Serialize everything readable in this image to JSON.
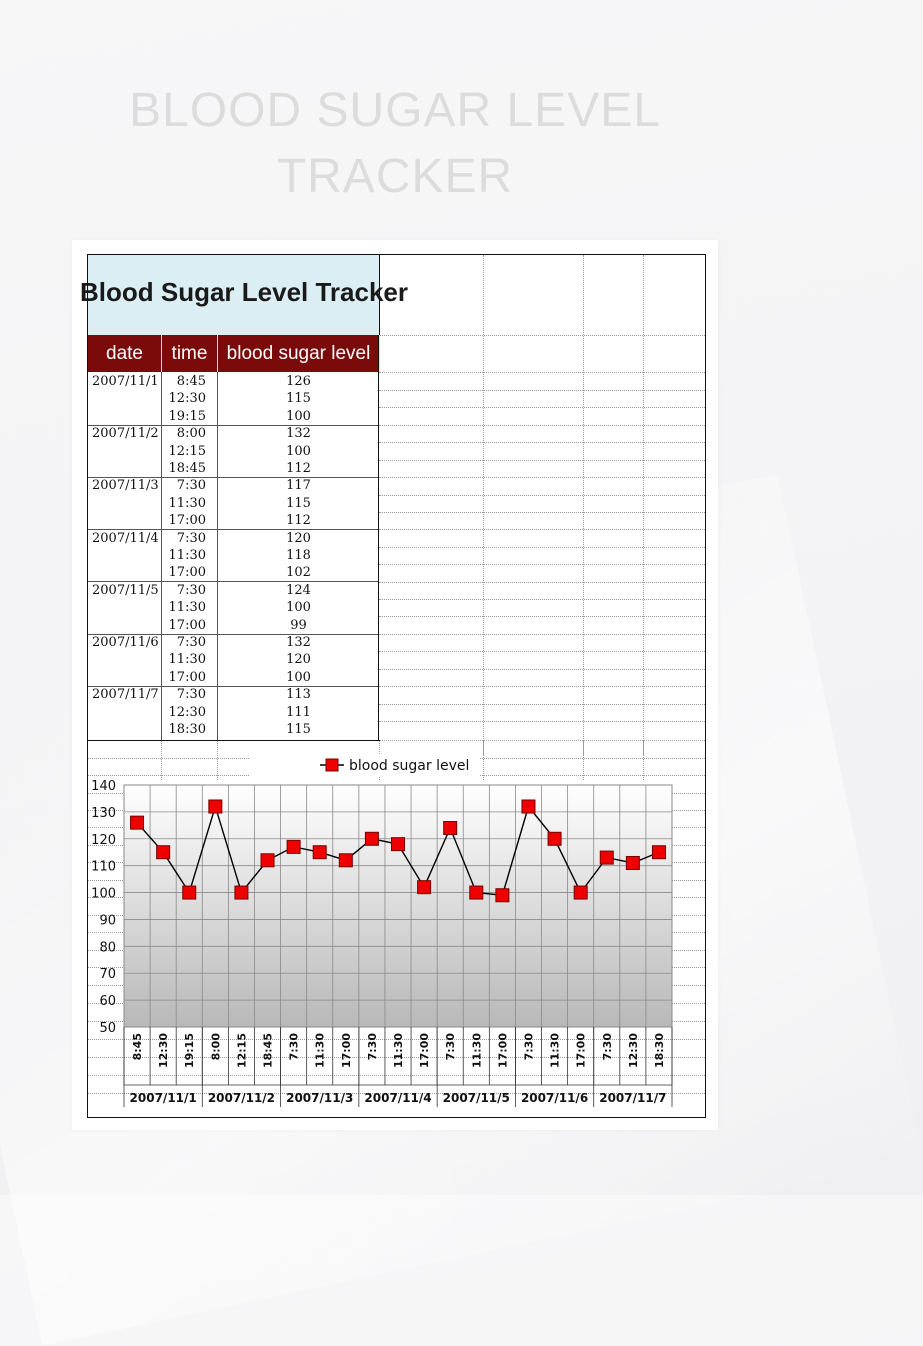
{
  "page_title_line1": "BLOOD SUGAR LEVEL",
  "page_title_line2": "TRACKER",
  "sheet_title": "Blood Sugar Level Tracker",
  "headers": {
    "date": "date",
    "time": "time",
    "level": "blood sugar level"
  },
  "rows": [
    {
      "date": "2007/11/1",
      "time": "8:45",
      "level": 126
    },
    {
      "date": "",
      "time": "12:30",
      "level": 115
    },
    {
      "date": "",
      "time": "19:15",
      "level": 100
    },
    {
      "date": "2007/11/2",
      "time": "8:00",
      "level": 132
    },
    {
      "date": "",
      "time": "12:15",
      "level": 100
    },
    {
      "date": "",
      "time": "18:45",
      "level": 112
    },
    {
      "date": "2007/11/3",
      "time": "7:30",
      "level": 117
    },
    {
      "date": "",
      "time": "11:30",
      "level": 115
    },
    {
      "date": "",
      "time": "17:00",
      "level": 112
    },
    {
      "date": "2007/11/4",
      "time": "7:30",
      "level": 120
    },
    {
      "date": "",
      "time": "11:30",
      "level": 118
    },
    {
      "date": "",
      "time": "17:00",
      "level": 102
    },
    {
      "date": "2007/11/5",
      "time": "7:30",
      "level": 124
    },
    {
      "date": "",
      "time": "11:30",
      "level": 100
    },
    {
      "date": "",
      "time": "17:00",
      "level": 99
    },
    {
      "date": "2007/11/6",
      "time": "7:30",
      "level": 132
    },
    {
      "date": "",
      "time": "11:30",
      "level": 120
    },
    {
      "date": "",
      "time": "17:00",
      "level": 100
    },
    {
      "date": "2007/11/7",
      "time": "7:30",
      "level": 113
    },
    {
      "date": "",
      "time": "12:30",
      "level": 111
    },
    {
      "date": "",
      "time": "18:30",
      "level": 115
    }
  ],
  "chart_data": {
    "type": "line",
    "x": [
      "8:45",
      "12:30",
      "19:15",
      "8:00",
      "12:15",
      "18:45",
      "7:30",
      "11:30",
      "17:00",
      "7:30",
      "11:30",
      "17:00",
      "7:30",
      "11:30",
      "17:00",
      "7:30",
      "11:30",
      "17:00",
      "7:30",
      "12:30",
      "18:30"
    ],
    "groups": [
      "2007/11/1",
      "2007/11/2",
      "2007/11/3",
      "2007/11/4",
      "2007/11/5",
      "2007/11/6",
      "2007/11/7"
    ],
    "series": [
      {
        "name": "blood sugar level",
        "values": [
          126,
          115,
          100,
          132,
          100,
          112,
          117,
          115,
          112,
          120,
          118,
          102,
          124,
          100,
          99,
          132,
          120,
          100,
          113,
          111,
          115
        ]
      }
    ],
    "ylim": [
      50,
      140
    ],
    "yticks": [
      50,
      60,
      70,
      80,
      90,
      100,
      110,
      120,
      130,
      140
    ],
    "legend": "top",
    "grid": true,
    "marker_color": "#ee0000",
    "line_color": "#000000"
  }
}
